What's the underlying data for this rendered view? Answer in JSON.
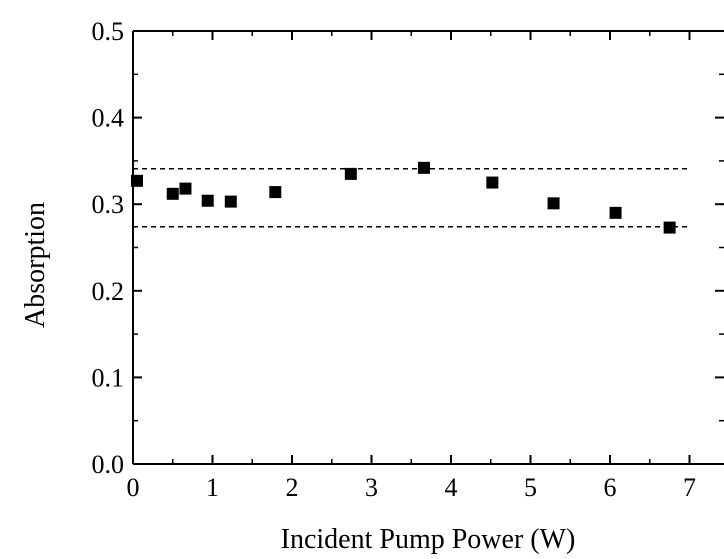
{
  "chart_data": {
    "type": "scatter",
    "title": "",
    "xlabel": "Incident Pump Power (W)",
    "ylabel": "Absorption",
    "xlim": [
      0,
      7
    ],
    "ylim": [
      0.0,
      0.5
    ],
    "x_ticks": [
      "0",
      "1",
      "2",
      "3",
      "4",
      "5",
      "6",
      "7"
    ],
    "y_ticks": [
      "0.0",
      "0.1",
      "0.2",
      "0.3",
      "0.4",
      "0.5"
    ],
    "grid": false,
    "legend": "none",
    "marker": "filled-square",
    "marker_color": "#000000",
    "series": [
      {
        "x": [
          0.05,
          0.5,
          0.66,
          0.94,
          1.23,
          1.79,
          2.74,
          3.66,
          4.52,
          5.29,
          6.07,
          6.75
        ],
        "y": [
          0.327,
          0.312,
          0.318,
          0.304,
          0.303,
          0.314,
          0.335,
          0.342,
          0.325,
          0.301,
          0.29,
          0.273
        ]
      }
    ],
    "reference_lines": [
      {
        "y": 0.341,
        "x_range": [
          0,
          7
        ],
        "style": "dashed"
      },
      {
        "y": 0.274,
        "x_range": [
          0,
          7
        ],
        "style": "dashed"
      }
    ]
  }
}
